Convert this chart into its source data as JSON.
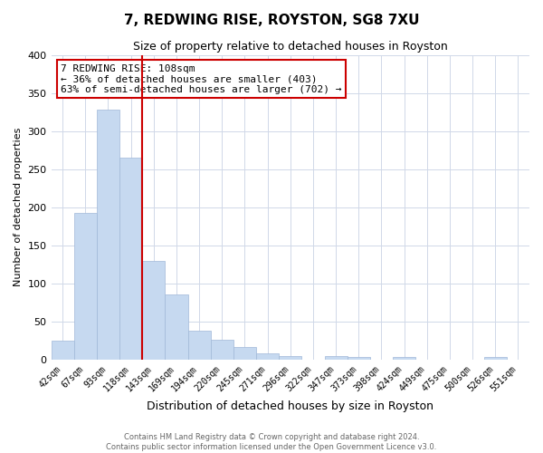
{
  "title": "7, REDWING RISE, ROYSTON, SG8 7XU",
  "subtitle": "Size of property relative to detached houses in Royston",
  "xlabel": "Distribution of detached houses by size in Royston",
  "ylabel": "Number of detached properties",
  "categories": [
    "42sqm",
    "67sqm",
    "93sqm",
    "118sqm",
    "143sqm",
    "169sqm",
    "194sqm",
    "220sqm",
    "245sqm",
    "271sqm",
    "296sqm",
    "322sqm",
    "347sqm",
    "373sqm",
    "398sqm",
    "424sqm",
    "449sqm",
    "475sqm",
    "500sqm",
    "526sqm",
    "551sqm"
  ],
  "values": [
    25,
    193,
    328,
    265,
    130,
    86,
    38,
    26,
    17,
    8,
    5,
    0,
    5,
    3,
    0,
    3,
    0,
    0,
    0,
    3,
    0
  ],
  "bar_color": "#c6d9f0",
  "bar_edge_color": "#a0b8d8",
  "redline_x": 3.5,
  "annotation_title": "7 REDWING RISE: 108sqm",
  "annotation_line1": "← 36% of detached houses are smaller (403)",
  "annotation_line2": "63% of semi-detached houses are larger (702) →",
  "annotation_box_color": "#ffffff",
  "annotation_box_edge": "#cc0000",
  "redline_color": "#cc0000",
  "ylim": [
    0,
    400
  ],
  "yticks": [
    0,
    50,
    100,
    150,
    200,
    250,
    300,
    350,
    400
  ],
  "footer_line1": "Contains HM Land Registry data © Crown copyright and database right 2024.",
  "footer_line2": "Contains public sector information licensed under the Open Government Licence v3.0.",
  "bg_color": "#ffffff",
  "grid_color": "#d0d8e8"
}
